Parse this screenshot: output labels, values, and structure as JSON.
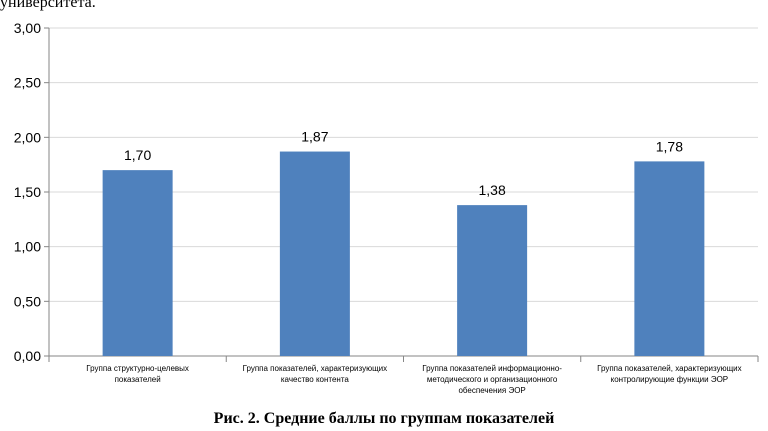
{
  "header_text": "университета.",
  "caption": "Рис. 2. Средние баллы по группам показателей",
  "colors": {
    "bar": "#4F81BD",
    "axis": "#868686",
    "grid": "#D9D9D9"
  },
  "chart_data": {
    "type": "bar",
    "categories": [
      [
        "Группа структурно-целевых",
        "показателей"
      ],
      [
        "Группа показателей, характеризующих",
        "качество  контента"
      ],
      [
        "Группа показателей информационно-",
        "методического и организационного",
        "обеспечения ЭОР"
      ],
      [
        "Группа показателей, характеризующих",
        "контролирующие функции ЭОР"
      ]
    ],
    "values": [
      1.7,
      1.87,
      1.38,
      1.78
    ],
    "data_labels": [
      "1,70",
      "1,87",
      "1,38",
      "1,78"
    ],
    "y_ticks": [
      0,
      0.5,
      1.0,
      1.5,
      2.0,
      2.5,
      3.0
    ],
    "y_tick_labels": [
      "0,00",
      "0,50",
      "1,00",
      "1,50",
      "2,00",
      "2,50",
      "3,00"
    ],
    "ylim": [
      0,
      3
    ],
    "grid": true,
    "legend": "none"
  }
}
